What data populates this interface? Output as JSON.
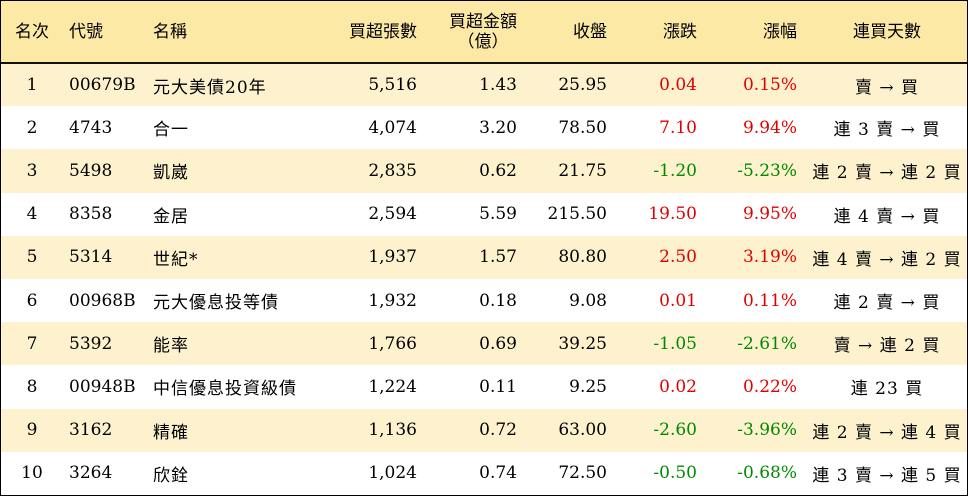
{
  "table": {
    "headers": {
      "rank": "名次",
      "code": "代號",
      "name": "名稱",
      "shares": "買超張數",
      "amount_line1": "買超金額",
      "amount_line2": "（億）",
      "close": "收盤",
      "change": "漲跌",
      "pct": "漲幅",
      "days": "連買天數"
    },
    "rows": [
      {
        "rank": "1",
        "code": "00679B",
        "name": "元大美債20年",
        "shares": "5,516",
        "amount": "1.43",
        "close": "25.95",
        "change": "0.04",
        "pct": "0.15%",
        "days": "賣 → 買",
        "direction": "up"
      },
      {
        "rank": "2",
        "code": "4743",
        "name": "合一",
        "shares": "4,074",
        "amount": "3.20",
        "close": "78.50",
        "change": "7.10",
        "pct": "9.94%",
        "days": "連 3 賣 → 買",
        "direction": "up"
      },
      {
        "rank": "3",
        "code": "5498",
        "name": "凱崴",
        "shares": "2,835",
        "amount": "0.62",
        "close": "21.75",
        "change": "-1.20",
        "pct": "-5.23%",
        "days": "連 2 賣 → 連 2 買",
        "direction": "down"
      },
      {
        "rank": "4",
        "code": "8358",
        "name": "金居",
        "shares": "2,594",
        "amount": "5.59",
        "close": "215.50",
        "change": "19.50",
        "pct": "9.95%",
        "days": "連 4 賣 → 買",
        "direction": "up"
      },
      {
        "rank": "5",
        "code": "5314",
        "name": "世紀*",
        "shares": "1,937",
        "amount": "1.57",
        "close": "80.80",
        "change": "2.50",
        "pct": "3.19%",
        "days": "連 4 賣 → 連 2 買",
        "direction": "up"
      },
      {
        "rank": "6",
        "code": "00968B",
        "name": "元大優息投等債",
        "shares": "1,932",
        "amount": "0.18",
        "close": "9.08",
        "change": "0.01",
        "pct": "0.11%",
        "days": "連 2 賣 → 買",
        "direction": "up"
      },
      {
        "rank": "7",
        "code": "5392",
        "name": "能率",
        "shares": "1,766",
        "amount": "0.69",
        "close": "39.25",
        "change": "-1.05",
        "pct": "-2.61%",
        "days": "賣 → 連 2 買",
        "direction": "down"
      },
      {
        "rank": "8",
        "code": "00948B",
        "name": "中信優息投資級債",
        "shares": "1,224",
        "amount": "0.11",
        "close": "9.25",
        "change": "0.02",
        "pct": "0.22%",
        "days": "連 23 買",
        "direction": "up"
      },
      {
        "rank": "9",
        "code": "3162",
        "name": "精確",
        "shares": "1,136",
        "amount": "0.72",
        "close": "63.00",
        "change": "-2.60",
        "pct": "-3.96%",
        "days": "連 2 賣 → 連 4 買",
        "direction": "down"
      },
      {
        "rank": "10",
        "code": "3264",
        "name": "欣銓",
        "shares": "1,024",
        "amount": "0.74",
        "close": "72.50",
        "change": "-0.50",
        "pct": "-0.68%",
        "days": "連 3 賣 → 連 5 買",
        "direction": "down"
      }
    ]
  },
  "colors": {
    "header_bg": "#fde9a6",
    "stripe_bg": "#fdf2cd",
    "up": "#e10000",
    "down": "#008a00"
  }
}
